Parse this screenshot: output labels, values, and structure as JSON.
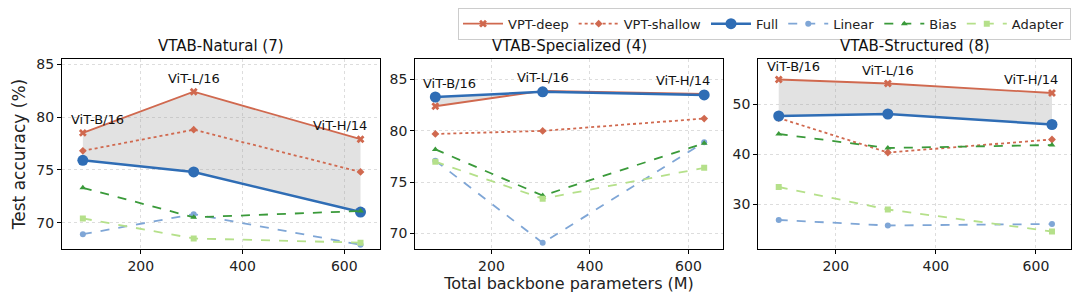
{
  "chart_data": [
    {
      "type": "line",
      "title": "VTAB-Natural (7)",
      "y_label": "Test accuracy (%)",
      "x": [
        86,
        304,
        632
      ],
      "xlim": [
        45,
        670
      ],
      "xticks": [
        200,
        400,
        600
      ],
      "ylim": [
        67.5,
        85.5
      ],
      "yticks": [
        70,
        75,
        80,
        85
      ],
      "grid": true,
      "legend": "top right",
      "series": [
        {
          "name": "VPT-deep",
          "color": "#d0694f",
          "marker": "x",
          "line_style": "solid",
          "values": [
            78.5,
            82.4,
            77.9
          ]
        },
        {
          "name": "VPT-shallow",
          "color": "#d0694f",
          "marker": "diamond",
          "line_style": "dot",
          "values": [
            76.8,
            78.8,
            74.8
          ]
        },
        {
          "name": "Full",
          "color": "#2f6db5",
          "marker": "circle",
          "line_style": "solid",
          "values": [
            75.9,
            74.8,
            71.0
          ]
        },
        {
          "name": "Linear",
          "color": "#7fa6d6",
          "marker": "circle",
          "line_style": "dash",
          "values": [
            68.9,
            70.8,
            67.9
          ]
        },
        {
          "name": "Bias",
          "color": "#3a9a3a",
          "marker": "triangle-up",
          "line_style": "dash",
          "values": [
            73.3,
            70.5,
            71.1
          ]
        },
        {
          "name": "Adapter",
          "color": "#b5e08a",
          "marker": "square",
          "line_style": "dash",
          "values": [
            70.4,
            68.5,
            68.1
          ]
        }
      ],
      "annotations": [
        {
          "x": 86,
          "y": 78.5,
          "text": "ViT-B/16"
        },
        {
          "x": 304,
          "y": 82.4,
          "text": "ViT-L/16"
        },
        {
          "x": 632,
          "y": 77.9,
          "text": "ViT-H/14"
        }
      ]
    },
    {
      "type": "line",
      "title": "VTAB-Specialized (4)",
      "x_label": "Total backbone parameters (M)",
      "x": [
        86,
        304,
        632
      ],
      "xlim": [
        45,
        670
      ],
      "xticks": [
        200,
        400,
        600
      ],
      "ylim": [
        68.5,
        87
      ],
      "yticks": [
        70,
        75,
        80,
        85
      ],
      "grid": true,
      "series": [
        {
          "name": "VPT-deep",
          "color": "#d0694f",
          "marker": "x",
          "line_style": "solid",
          "values": [
            82.4,
            83.9,
            83.6
          ]
        },
        {
          "name": "VPT-shallow",
          "color": "#d0694f",
          "marker": "diamond",
          "line_style": "dot",
          "values": [
            79.7,
            80.0,
            81.2
          ]
        },
        {
          "name": "Full",
          "color": "#2f6db5",
          "marker": "circle",
          "line_style": "solid",
          "values": [
            83.3,
            83.8,
            83.5
          ]
        },
        {
          "name": "Linear",
          "color": "#7fa6d6",
          "marker": "circle",
          "line_style": "dash",
          "values": [
            77.1,
            69.1,
            78.9
          ]
        },
        {
          "name": "Bias",
          "color": "#3a9a3a",
          "marker": "triangle-up",
          "line_style": "dash",
          "values": [
            78.2,
            73.7,
            78.8
          ]
        },
        {
          "name": "Adapter",
          "color": "#b5e08a",
          "marker": "square",
          "line_style": "dash",
          "values": [
            77.0,
            73.4,
            76.4
          ]
        }
      ],
      "annotations": [
        {
          "x": 86,
          "y": 83.3,
          "text": "ViT-B/16"
        },
        {
          "x": 304,
          "y": 83.9,
          "text": "ViT-L/16"
        },
        {
          "x": 632,
          "y": 83.6,
          "text": "ViT-H/14"
        }
      ]
    },
    {
      "type": "line",
      "title": "VTAB-Structured (8)",
      "x": [
        86,
        304,
        632
      ],
      "xlim": [
        45,
        670
      ],
      "xticks": [
        200,
        400,
        600
      ],
      "ylim": [
        21,
        59
      ],
      "yticks": [
        30,
        40,
        50
      ],
      "grid": true,
      "series": [
        {
          "name": "VPT-deep",
          "color": "#d0694f",
          "marker": "x",
          "line_style": "solid",
          "values": [
            54.9,
            54.1,
            52.2
          ]
        },
        {
          "name": "VPT-shallow",
          "color": "#d0694f",
          "marker": "diamond",
          "line_style": "dot",
          "values": [
            47.2,
            40.3,
            42.9
          ]
        },
        {
          "name": "Full",
          "color": "#2f6db5",
          "marker": "circle",
          "line_style": "solid",
          "values": [
            47.6,
            48.0,
            45.9
          ]
        },
        {
          "name": "Linear",
          "color": "#7fa6d6",
          "marker": "circle",
          "line_style": "dash",
          "values": [
            26.8,
            25.7,
            26.0
          ]
        },
        {
          "name": "Bias",
          "color": "#3a9a3a",
          "marker": "triangle-up",
          "line_style": "dash",
          "values": [
            44.0,
            41.2,
            41.8
          ]
        },
        {
          "name": "Adapter",
          "color": "#b5e08a",
          "marker": "square",
          "line_style": "dash",
          "values": [
            33.4,
            28.9,
            24.5
          ]
        }
      ],
      "annotations": [
        {
          "x": 86,
          "y": 54.9,
          "text": "ViT-B/16"
        },
        {
          "x": 304,
          "y": 54.1,
          "text": "ViT-L/16"
        },
        {
          "x": 632,
          "y": 52.2,
          "text": "ViT-H/14"
        }
      ]
    }
  ]
}
